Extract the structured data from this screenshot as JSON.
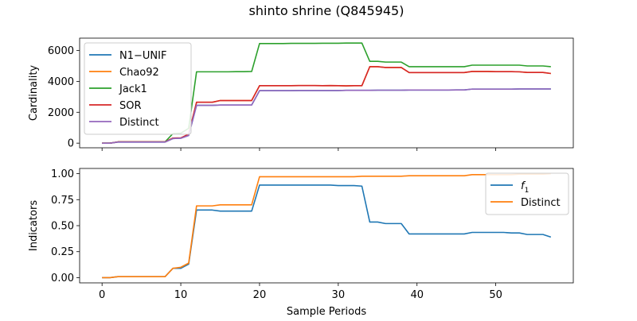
{
  "figure": {
    "title": "shinto shrine (Q845945)"
  },
  "colors": {
    "blue": "#1f77b4",
    "orange": "#ff7f0e",
    "green": "#2ca02c",
    "red": "#d62728",
    "purple": "#9467bd"
  },
  "chart_data": [
    {
      "type": "line",
      "title": "",
      "xlabel": "",
      "ylabel": "Cardinality",
      "xlim": [
        -2.85,
        59.85
      ],
      "ylim": [
        -300,
        6800
      ],
      "x_ticks": [
        0,
        10,
        20,
        30,
        40,
        50
      ],
      "x_ticklabels_visible": false,
      "y_ticks": [
        0,
        2000,
        4000,
        6000
      ],
      "y_ticklabels": [
        "0",
        "2000",
        "4000",
        "6000"
      ],
      "legend_position": "upper-left",
      "x": [
        0,
        1,
        2,
        3,
        4,
        5,
        6,
        7,
        8,
        9,
        10,
        11,
        12,
        13,
        14,
        15,
        16,
        17,
        18,
        19,
        20,
        21,
        22,
        23,
        24,
        25,
        26,
        27,
        28,
        29,
        30,
        31,
        32,
        33,
        34,
        35,
        36,
        37,
        38,
        39,
        40,
        41,
        42,
        43,
        44,
        45,
        46,
        47,
        48,
        49,
        50,
        51,
        52,
        53,
        54,
        55,
        56,
        57
      ],
      "series": [
        {
          "name": "N1−UNIF",
          "color": "#1f77b4",
          "values": [
            0,
            0,
            70,
            70,
            70,
            70,
            70,
            70,
            70,
            300,
            320,
            500,
            2450,
            2450,
            2450,
            2470,
            2470,
            2470,
            2470,
            2470,
            3400,
            3400,
            3400,
            3400,
            3400,
            3410,
            3410,
            3410,
            3410,
            3410,
            3410,
            3420,
            3420,
            3420,
            3420,
            3430,
            3430,
            3430,
            3430,
            3440,
            3440,
            3440,
            3440,
            3440,
            3440,
            3445,
            3445,
            3500,
            3500,
            3500,
            3500,
            3500,
            3500,
            3510,
            3510,
            3510,
            3510,
            3510
          ]
        },
        {
          "name": "Chao92",
          "color": "#ff7f0e",
          "values": [
            0,
            0,
            80,
            80,
            80,
            80,
            80,
            80,
            80,
            330,
            340,
            580,
            2650,
            2650,
            2650,
            2760,
            2760,
            2760,
            2760,
            2760,
            3720,
            3720,
            3720,
            3720,
            3720,
            3730,
            3730,
            3730,
            3720,
            3730,
            3720,
            3710,
            3720,
            3720,
            4950,
            4950,
            4900,
            4900,
            4900,
            4570,
            4570,
            4570,
            4570,
            4570,
            4570,
            4570,
            4570,
            4640,
            4640,
            4640,
            4630,
            4630,
            4630,
            4620,
            4580,
            4580,
            4580,
            4510
          ]
        },
        {
          "name": "Jack1",
          "color": "#2ca02c",
          "values": [
            0,
            0,
            80,
            80,
            80,
            80,
            80,
            80,
            80,
            620,
            640,
            960,
            4620,
            4620,
            4620,
            4620,
            4620,
            4630,
            4630,
            4640,
            6450,
            6450,
            6450,
            6450,
            6460,
            6460,
            6460,
            6460,
            6470,
            6470,
            6470,
            6480,
            6480,
            6480,
            5300,
            5300,
            5250,
            5250,
            5250,
            4950,
            4950,
            4950,
            4950,
            4950,
            4950,
            4950,
            4950,
            5050,
            5050,
            5050,
            5050,
            5050,
            5050,
            5050,
            5000,
            5000,
            5000,
            4950
          ]
        },
        {
          "name": "SOR",
          "color": "#d62728",
          "values": [
            0,
            0,
            80,
            80,
            80,
            80,
            80,
            80,
            80,
            330,
            340,
            580,
            2650,
            2650,
            2650,
            2760,
            2760,
            2760,
            2760,
            2760,
            3720,
            3720,
            3720,
            3720,
            3720,
            3730,
            3730,
            3730,
            3720,
            3730,
            3720,
            3710,
            3720,
            3720,
            4950,
            4950,
            4900,
            4900,
            4900,
            4570,
            4570,
            4570,
            4570,
            4570,
            4570,
            4570,
            4570,
            4640,
            4640,
            4640,
            4630,
            4630,
            4630,
            4620,
            4580,
            4580,
            4580,
            4510
          ]
        },
        {
          "name": "Distinct",
          "color": "#9467bd",
          "values": [
            0,
            0,
            70,
            70,
            70,
            70,
            70,
            70,
            70,
            300,
            320,
            500,
            2450,
            2450,
            2450,
            2470,
            2470,
            2470,
            2470,
            2470,
            3400,
            3400,
            3400,
            3400,
            3400,
            3410,
            3410,
            3410,
            3410,
            3410,
            3410,
            3420,
            3420,
            3420,
            3420,
            3430,
            3430,
            3430,
            3430,
            3440,
            3440,
            3440,
            3440,
            3440,
            3440,
            3445,
            3445,
            3500,
            3500,
            3500,
            3500,
            3500,
            3500,
            3510,
            3510,
            3510,
            3510,
            3510
          ]
        }
      ]
    },
    {
      "type": "line",
      "title": "",
      "xlabel": "Sample Periods",
      "ylabel": "Indicators",
      "xlim": [
        -2.85,
        59.85
      ],
      "ylim": [
        -0.05,
        1.05
      ],
      "x_ticks": [
        0,
        10,
        20,
        30,
        40,
        50
      ],
      "x_ticklabels": [
        "0",
        "10",
        "20",
        "30",
        "40",
        "50"
      ],
      "y_ticks": [
        0.0,
        0.25,
        0.5,
        0.75,
        1.0
      ],
      "y_ticklabels": [
        "0.00",
        "0.25",
        "0.50",
        "0.75",
        "1.00"
      ],
      "legend_position": "upper-right",
      "x": [
        0,
        1,
        2,
        3,
        4,
        5,
        6,
        7,
        8,
        9,
        10,
        11,
        12,
        13,
        14,
        15,
        16,
        17,
        18,
        19,
        20,
        21,
        22,
        23,
        24,
        25,
        26,
        27,
        28,
        29,
        30,
        31,
        32,
        33,
        34,
        35,
        36,
        37,
        38,
        39,
        40,
        41,
        42,
        43,
        44,
        45,
        46,
        47,
        48,
        49,
        50,
        51,
        52,
        53,
        54,
        55,
        56,
        57
      ],
      "series": [
        {
          "name": "f1",
          "display_name": "f",
          "display_subscript": "1",
          "color": "#1f77b4",
          "values": [
            0.0,
            0.0,
            0.01,
            0.01,
            0.01,
            0.01,
            0.01,
            0.01,
            0.01,
            0.09,
            0.09,
            0.13,
            0.65,
            0.65,
            0.65,
            0.64,
            0.64,
            0.64,
            0.64,
            0.64,
            0.89,
            0.89,
            0.89,
            0.89,
            0.89,
            0.89,
            0.89,
            0.89,
            0.89,
            0.89,
            0.885,
            0.885,
            0.885,
            0.88,
            0.535,
            0.535,
            0.52,
            0.52,
            0.52,
            0.42,
            0.42,
            0.42,
            0.42,
            0.42,
            0.42,
            0.42,
            0.42,
            0.435,
            0.435,
            0.435,
            0.435,
            0.435,
            0.43,
            0.43,
            0.415,
            0.415,
            0.415,
            0.39
          ]
        },
        {
          "name": "Distinct",
          "color": "#ff7f0e",
          "values": [
            0.0,
            0.0,
            0.01,
            0.01,
            0.01,
            0.01,
            0.01,
            0.01,
            0.01,
            0.09,
            0.1,
            0.14,
            0.69,
            0.69,
            0.69,
            0.7,
            0.7,
            0.7,
            0.7,
            0.7,
            0.97,
            0.97,
            0.97,
            0.97,
            0.97,
            0.97,
            0.97,
            0.97,
            0.97,
            0.97,
            0.97,
            0.97,
            0.97,
            0.975,
            0.975,
            0.975,
            0.975,
            0.975,
            0.975,
            0.98,
            0.98,
            0.98,
            0.98,
            0.98,
            0.98,
            0.98,
            0.98,
            0.99,
            0.99,
            0.99,
            0.99,
            0.99,
            0.99,
            0.995,
            0.995,
            0.995,
            0.995,
            1.0
          ]
        }
      ]
    }
  ]
}
